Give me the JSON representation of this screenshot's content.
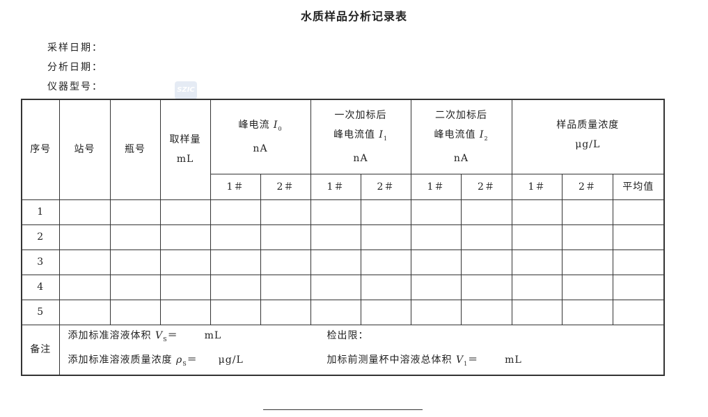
{
  "title": "水质样品分析记录表",
  "meta": {
    "sampling_date": "采样日期：",
    "analysis_date": "分析日期：",
    "instrument_model": "仪器型号："
  },
  "watermark": "SZIC",
  "headers": {
    "seq": "序号",
    "station": "站号",
    "bottle": "瓶号",
    "volume": "取样量",
    "volume_unit": "mL",
    "i0_label": "峰电流 ",
    "i0_var": "I",
    "i0_sub": "0",
    "i0_unit": "nA",
    "i1_line1": "一次加标后",
    "i1_label": "峰电流值 ",
    "i1_var": "I",
    "i1_sub": "1",
    "i1_unit": "nA",
    "i2_line1": "二次加标后",
    "i2_label": "峰电流值 ",
    "i2_var": "I",
    "i2_sub": "2",
    "i2_unit": "nA",
    "conc": "样品质量浓度",
    "conc_unit": "μg/L",
    "sub1": "1＃",
    "sub2": "2＃",
    "avg": "平均值"
  },
  "rows": [
    "1",
    "2",
    "3",
    "4",
    "5"
  ],
  "notes": {
    "label": "备注",
    "vs_text": "添加标准溶液体积 ",
    "vs_var": "V",
    "vs_sub": "S",
    "vs_eq": "＝",
    "vs_unit": "mL",
    "detect_limit": "检出限：",
    "rho_text": "添加标准溶液质量浓度 ",
    "rho_var": "ρ",
    "rho_sub": "S",
    "rho_eq": "＝",
    "rho_unit": "μg/L",
    "v1_text": "加标前测量杯中溶液总体积 ",
    "v1_var": "V",
    "v1_sub": "1",
    "v1_eq": "＝",
    "v1_unit": "mL"
  }
}
